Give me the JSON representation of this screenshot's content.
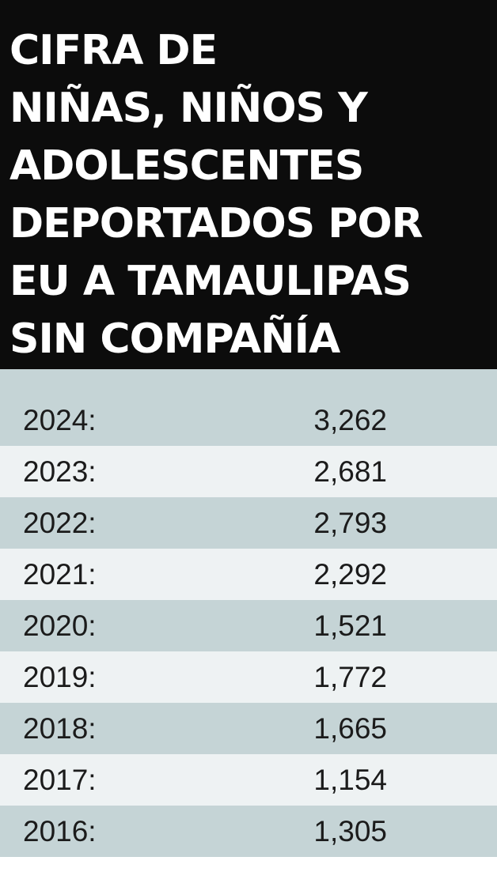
{
  "title": "CIFRA DE\nNIÑAS, NIÑOS Y\nADOLESCENTES\nDEPORTADOS POR\nEU A TAMAULIPAS\nSIN COMPAÑÍA",
  "colors": {
    "header_background": "#0c0c0c",
    "header_text": "#ffffff",
    "row_dark": "#c5d4d6",
    "row_light": "#eef2f3",
    "text": "#1b1b1b"
  },
  "chart_data": {
    "type": "table",
    "title": "CIFRA DE NIÑAS, NIÑOS Y ADOLESCENTES DEPORTADOS POR EU A TAMAULIPAS SIN COMPAÑÍA",
    "rows": [
      {
        "year": "2024:",
        "value": "3,262"
      },
      {
        "year": "2023:",
        "value": "2,681"
      },
      {
        "year": "2022:",
        "value": "2,793"
      },
      {
        "year": "2021:",
        "value": "2,292"
      },
      {
        "year": "2020:",
        "value": "1,521"
      },
      {
        "year": "2019:",
        "value": "1,772"
      },
      {
        "year": "2018:",
        "value": "1,665"
      },
      {
        "year": "2017:",
        "value": "1,154"
      },
      {
        "year": "2016:",
        "value": "1,305"
      }
    ]
  }
}
